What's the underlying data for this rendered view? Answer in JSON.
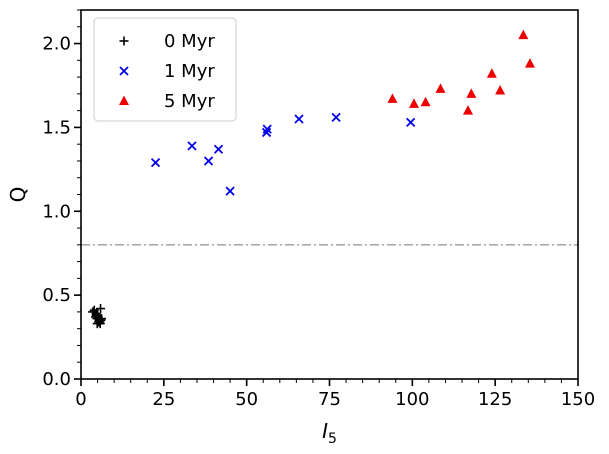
{
  "chart_data": {
    "type": "scatter",
    "title": "",
    "xlabel": "I",
    "xlabel_sub": "5",
    "ylabel": "Q",
    "xlim": [
      0,
      150
    ],
    "ylim": [
      0,
      2.2
    ],
    "x_ticks": [
      0,
      25,
      50,
      75,
      100,
      125,
      150
    ],
    "x_tick_labels": [
      "0",
      "25",
      "50",
      "75",
      "100",
      "125",
      "150"
    ],
    "y_ticks": [
      0,
      0.5,
      1.0,
      1.5,
      2.0
    ],
    "y_tick_labels": [
      "0.0",
      "0.5",
      "1.0",
      "1.5",
      "2.0"
    ],
    "grid": false,
    "legend_position": "top-left",
    "reference_line": {
      "y": 0.8,
      "style": "dash-dot",
      "color": "#aaaaaa"
    },
    "series": [
      {
        "name": "0 Myr",
        "marker": "plus",
        "color": "#000000",
        "points": [
          [
            3.5,
            0.4
          ],
          [
            4.0,
            0.41
          ],
          [
            4.6,
            0.39
          ],
          [
            5.2,
            0.37
          ],
          [
            5.9,
            0.42
          ],
          [
            4.8,
            0.36
          ],
          [
            5.5,
            0.35
          ],
          [
            6.2,
            0.36
          ],
          [
            4.9,
            0.33
          ],
          [
            5.7,
            0.34
          ],
          [
            5.0,
            0.38
          ],
          [
            6.0,
            0.35
          ],
          [
            5.3,
            0.34
          ],
          [
            4.4,
            0.37
          ],
          [
            5.8,
            0.33
          ]
        ]
      },
      {
        "name": "1 Myr",
        "marker": "x",
        "color": "#0000ee",
        "points": [
          [
            22.5,
            1.29
          ],
          [
            33.5,
            1.39
          ],
          [
            38.5,
            1.3
          ],
          [
            41.5,
            1.37
          ],
          [
            45.0,
            1.12
          ],
          [
            56.0,
            1.47
          ],
          [
            56.2,
            1.49
          ],
          [
            65.8,
            1.55
          ],
          [
            77.0,
            1.56
          ],
          [
            99.5,
            1.53
          ]
        ]
      },
      {
        "name": "5 Myr",
        "marker": "triangle",
        "color": "#ee0000",
        "points": [
          [
            94.0,
            1.67
          ],
          [
            100.5,
            1.64
          ],
          [
            104.0,
            1.65
          ],
          [
            108.5,
            1.73
          ],
          [
            116.8,
            1.6
          ],
          [
            117.8,
            1.7
          ],
          [
            124.0,
            1.82
          ],
          [
            126.5,
            1.72
          ],
          [
            133.5,
            2.05
          ],
          [
            135.5,
            1.88
          ]
        ]
      }
    ]
  }
}
